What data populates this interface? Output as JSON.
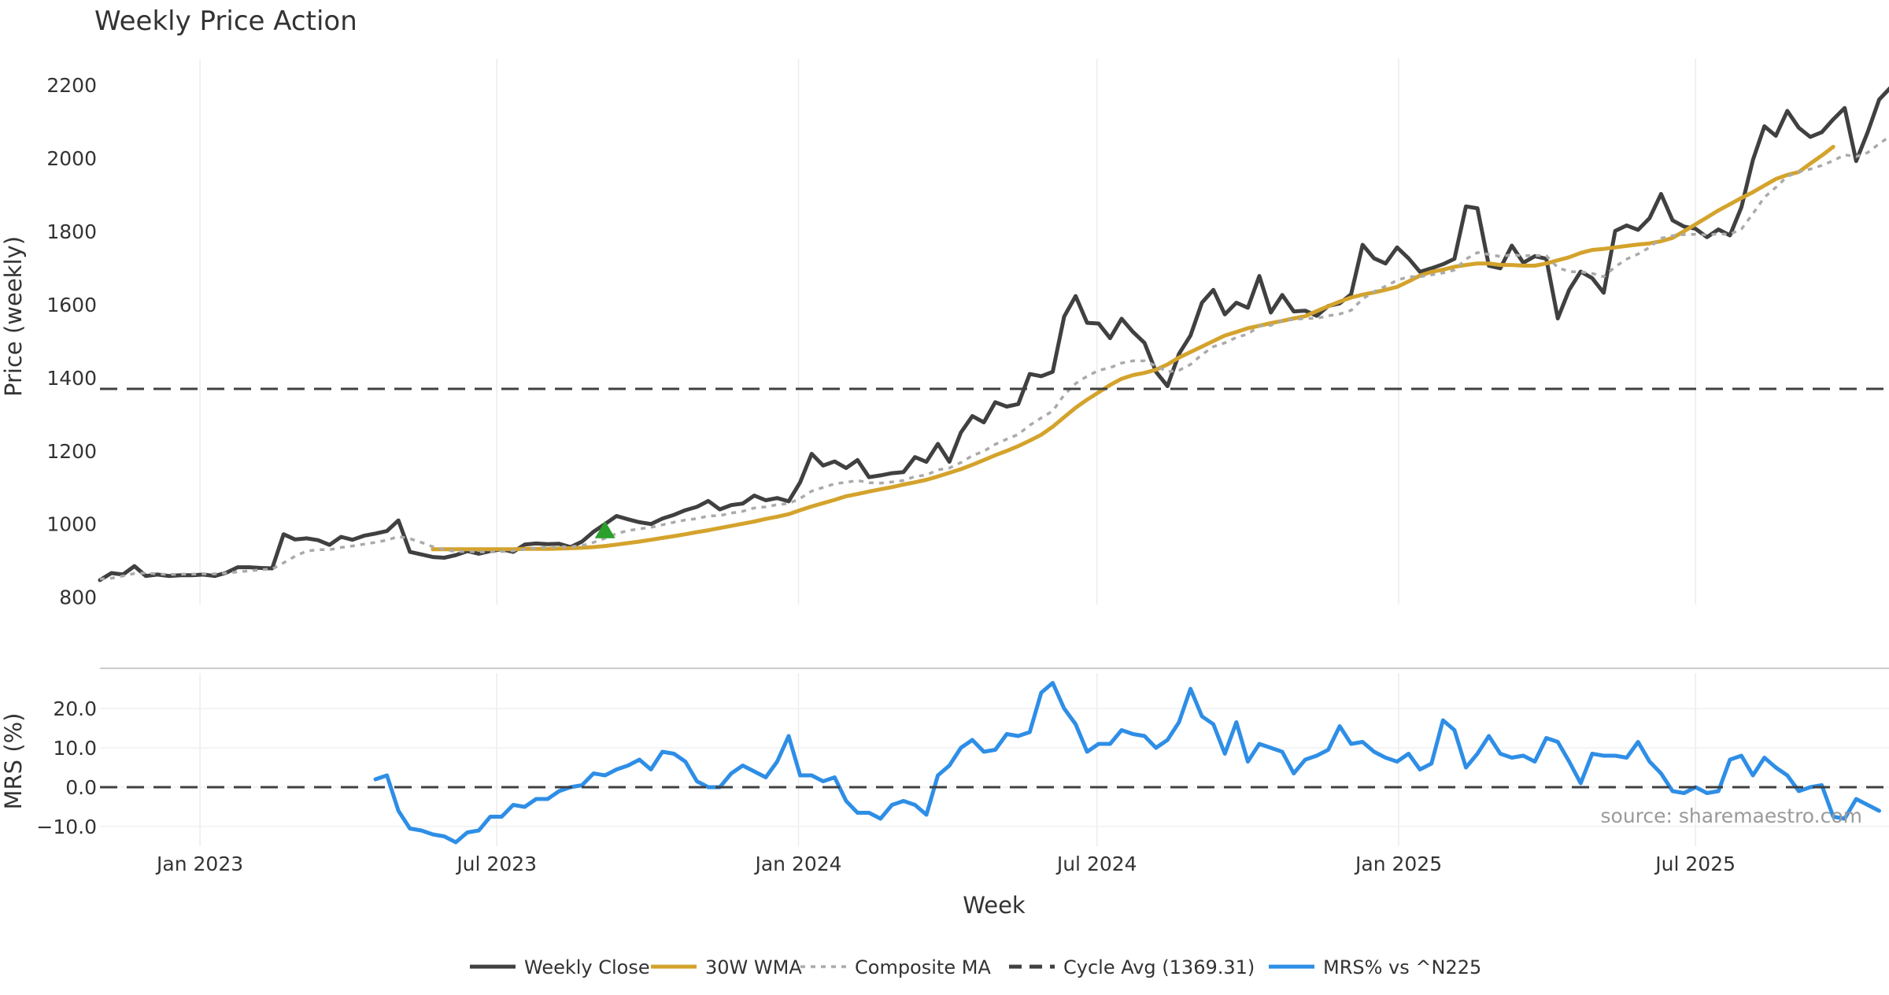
{
  "chart_data": {
    "title": "Weekly Price Action",
    "xlabel": "Week",
    "x_ticks": [
      "Jan 2023",
      "Jul 2023",
      "Jan 2024",
      "Jul 2024",
      "Jan 2025",
      "Jul 2025"
    ],
    "x_range": [
      "2022-11-01",
      "2025-10-27"
    ],
    "source": "source: sharemaestro.com",
    "panels": [
      {
        "name": "price",
        "type": "line",
        "ylabel": "Price (weekly)",
        "ylim": [
          780,
          2260
        ],
        "y_ticks": [
          800,
          1000,
          1200,
          1400,
          1600,
          1800,
          2000,
          2200
        ],
        "grid": "vertical",
        "series": [
          {
            "name": "Weekly Close",
            "color": "#404040",
            "style": "solid",
            "values": [
              847,
              866,
              862,
              885,
              858,
              862,
              858,
              860,
              860,
              862,
              858,
              867,
              882,
              882,
              880,
              879,
              972,
              958,
              961,
              956,
              943,
              965,
              957,
              968,
              974,
              981,
              1010,
              924,
              917,
              910,
              908,
              915,
              926,
              919,
              926,
              931,
              924,
              944,
              947,
              945,
              946,
              937,
              952,
              979,
              1000,
              1022,
              1013,
              1005,
              1000,
              1015,
              1025,
              1038,
              1047,
              1063,
              1040,
              1052,
              1056,
              1078,
              1065,
              1071,
              1062,
              1114,
              1192,
              1160,
              1171,
              1153,
              1175,
              1128,
              1133,
              1139,
              1142,
              1183,
              1170,
              1219,
              1170,
              1250,
              1295,
              1278,
              1333,
              1321,
              1328,
              1410,
              1404,
              1416,
              1567,
              1623,
              1550,
              1548,
              1508,
              1561,
              1525,
              1495,
              1416,
              1377,
              1465,
              1515,
              1605,
              1640,
              1573,
              1605,
              1591,
              1678,
              1578,
              1626,
              1581,
              1583,
              1569,
              1596,
              1603,
              1628,
              1763,
              1726,
              1712,
              1756,
              1726,
              1689,
              1699,
              1710,
              1725,
              1868,
              1863,
              1706,
              1699,
              1761,
              1714,
              1732,
              1725,
              1562,
              1640,
              1690,
              1672,
              1632,
              1801,
              1816,
              1804,
              1836,
              1902,
              1830,
              1813,
              1807,
              1784,
              1805,
              1789,
              1866,
              1995,
              2087,
              2061,
              2129,
              2083,
              2058,
              2071,
              2106,
              2137,
              1992,
              2071,
              2160,
              2193,
              2191
            ]
          },
          {
            "name": "30W WMA",
            "color": "#d4a32c",
            "style": "solid",
            "start_week": 29,
            "values": [
              931,
              931,
              931,
              931,
              931,
              931,
              931,
              931,
              932,
              932,
              932,
              933,
              934,
              935,
              937,
              940,
              944,
              948,
              952,
              957,
              962,
              967,
              972,
              978,
              983,
              989,
              995,
              1001,
              1007,
              1014,
              1020,
              1027,
              1038,
              1048,
              1057,
              1066,
              1076,
              1082,
              1089,
              1095,
              1101,
              1108,
              1114,
              1121,
              1130,
              1140,
              1150,
              1162,
              1175,
              1188,
              1200,
              1213,
              1228,
              1244,
              1266,
              1292,
              1318,
              1340,
              1360,
              1380,
              1397,
              1407,
              1413,
              1422,
              1436,
              1455,
              1470,
              1485,
              1500,
              1515,
              1525,
              1535,
              1542,
              1549,
              1555,
              1562,
              1568,
              1582,
              1595,
              1608,
              1619,
              1627,
              1633,
              1640,
              1648,
              1663,
              1679,
              1689,
              1695,
              1703,
              1708,
              1712,
              1712,
              1708,
              1708,
              1706,
              1706,
              1712,
              1721,
              1729,
              1741,
              1749,
              1752,
              1756,
              1760,
              1764,
              1767,
              1773,
              1782,
              1800,
              1819,
              1838,
              1857,
              1874,
              1891,
              1907,
              1925,
              1943,
              1954,
              1962,
              1985,
              2007,
              2031
            ]
          },
          {
            "name": "Composite MA",
            "color": "#aaaaaa",
            "style": "dotted",
            "values": [
              850,
              852,
              858,
              865,
              866,
              864,
              862,
              863,
              863,
              864,
              864,
              866,
              869,
              872,
              875,
              877,
              894,
              912,
              926,
              930,
              930,
              936,
              940,
              945,
              950,
              956,
              966,
              960,
              950,
              938,
              930,
              925,
              925,
              924,
              924,
              925,
              927,
              931,
              934,
              937,
              938,
              938,
              941,
              950,
              961,
              974,
              982,
              987,
              991,
              998,
              1005,
              1011,
              1015,
              1022,
              1023,
              1030,
              1035,
              1044,
              1047,
              1053,
              1056,
              1070,
              1090,
              1100,
              1110,
              1114,
              1119,
              1113,
              1112,
              1115,
              1119,
              1130,
              1134,
              1148,
              1153,
              1168,
              1187,
              1199,
              1218,
              1232,
              1245,
              1270,
              1290,
              1309,
              1353,
              1384,
              1404,
              1420,
              1427,
              1440,
              1446,
              1446,
              1432,
              1416,
              1420,
              1436,
              1463,
              1485,
              1495,
              1510,
              1519,
              1541,
              1543,
              1556,
              1559,
              1562,
              1562,
              1569,
              1574,
              1584,
              1615,
              1635,
              1650,
              1666,
              1676,
              1676,
              1681,
              1686,
              1694,
              1724,
              1742,
              1737,
              1731,
              1736,
              1733,
              1734,
              1733,
              1701,
              1690,
              1689,
              1685,
              1676,
              1703,
              1724,
              1738,
              1756,
              1781,
              1788,
              1791,
              1792,
              1790,
              1793,
              1792,
              1806,
              1848,
              1893,
              1920,
              1950,
              1962,
              1970,
              1980,
              1993,
              2009,
              2004,
              2015,
              2039,
              2061,
              2077
            ]
          },
          {
            "name": "Cycle Avg (1369.31)",
            "color": "#404040",
            "style": "dashed",
            "value": 1369.31
          }
        ],
        "markers": [
          {
            "type": "triangle-up",
            "color": "#2ca02c",
            "week": 44,
            "y": 985
          }
        ]
      },
      {
        "name": "mrs",
        "type": "line",
        "ylabel": "MRS (%)",
        "ylim": [
          -15,
          28
        ],
        "y_ticks": [
          -10,
          0,
          10,
          20
        ],
        "y_tick_labels": [
          "−10.0",
          "0.0",
          "10.0",
          "20.0"
        ],
        "grid": "vertical",
        "series": [
          {
            "name": "MRS% vs ^N225",
            "color": "#2e8ee6",
            "style": "solid",
            "start_week": 24,
            "values": [
              2,
              3,
              -6,
              -10.5,
              -11,
              -12,
              -12.5,
              -14,
              -11.5,
              -11,
              -7.5,
              -7.5,
              -4.5,
              -5,
              -3,
              -3,
              -1,
              0,
              0.5,
              3.5,
              3,
              4.5,
              5.5,
              7,
              4.5,
              9,
              8.5,
              6.5,
              1.5,
              0,
              0,
              3.5,
              5.5,
              4,
              2.5,
              6.5,
              13,
              3,
              3,
              1.5,
              2.5,
              -3.5,
              -6.5,
              -6.5,
              -8,
              -4.5,
              -3.5,
              -4.5,
              -7,
              3,
              5.5,
              10,
              12,
              9,
              9.5,
              13.5,
              13,
              14,
              24,
              26.5,
              20,
              16,
              9,
              11,
              11,
              14.5,
              13.5,
              13,
              10,
              12,
              16.5,
              25,
              18,
              16,
              8.5,
              16.5,
              6.5,
              11,
              10,
              9,
              3.5,
              7,
              8,
              9.5,
              15.5,
              11,
              11.5,
              9,
              7.5,
              6.5,
              8.5,
              4.5,
              6,
              17,
              14.5,
              5,
              8.5,
              13,
              8.5,
              7.5,
              8,
              6.5,
              12.5,
              11.5,
              6.5,
              1,
              8.5,
              8,
              8,
              7.5,
              11.5,
              6.5,
              3.5,
              -1,
              -1.5,
              0,
              -1.5,
              -1,
              7,
              8,
              3,
              7.5,
              5,
              3,
              -1,
              0,
              0.5,
              -7.5,
              -8,
              -3,
              -4.5,
              -6
            ]
          },
          {
            "name": "zero",
            "color": "#404040",
            "style": "dashed",
            "value": 0
          }
        ]
      }
    ],
    "legend": {
      "placement": "bottom-center",
      "entries": [
        {
          "label": "Weekly Close",
          "color": "#404040",
          "style": "solid"
        },
        {
          "label": "30W WMA",
          "color": "#d4a32c",
          "style": "solid"
        },
        {
          "label": "Composite MA",
          "color": "#aaaaaa",
          "style": "dotted"
        },
        {
          "label": "Cycle Avg (1369.31)",
          "color": "#404040",
          "style": "dashed"
        },
        {
          "label": "MRS% vs ^N225",
          "color": "#2e8ee6",
          "style": "solid"
        }
      ]
    }
  }
}
